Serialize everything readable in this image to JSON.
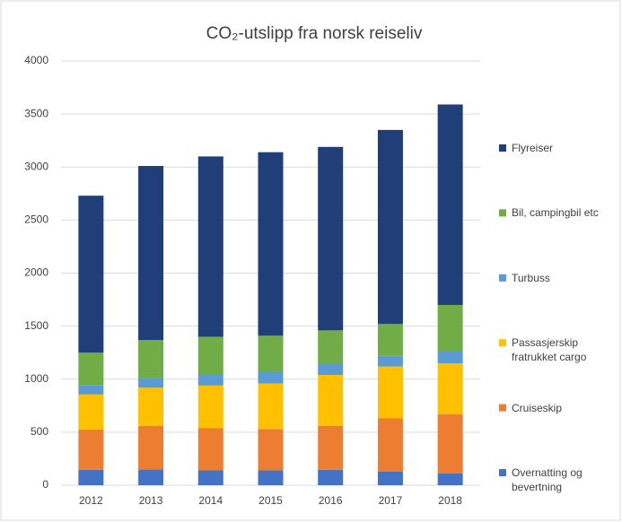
{
  "chart_data": {
    "type": "stacked_bar",
    "title": "CO₂-utslipp fra norsk reiseliv",
    "categories": [
      "2012",
      "2013",
      "2014",
      "2015",
      "2016",
      "2017",
      "2018"
    ],
    "series": [
      {
        "name": "Overnatting og bevertning",
        "color": "#4472c4",
        "values": [
          145,
          150,
          140,
          140,
          145,
          130,
          110
        ]
      },
      {
        "name": "Cruiseskip",
        "color": "#ed7d31",
        "values": [
          380,
          410,
          400,
          390,
          415,
          500,
          560
        ]
      },
      {
        "name": "Passasjerskip fratrukket cargo",
        "color": "#ffc000",
        "values": [
          330,
          360,
          400,
          430,
          480,
          490,
          480
        ]
      },
      {
        "name": "Turbuss",
        "color": "#5b9bd5",
        "values": [
          85,
          90,
          100,
          110,
          110,
          100,
          110
        ]
      },
      {
        "name": "Bil, campingbil etc",
        "color": "#70ad47",
        "values": [
          310,
          360,
          360,
          340,
          310,
          300,
          440
        ]
      },
      {
        "name": "Flyreiser",
        "color": "#203e78",
        "values": [
          1480,
          1640,
          1700,
          1730,
          1730,
          1830,
          1890
        ]
      }
    ],
    "ylim": [
      0,
      4000
    ],
    "yticks": [
      0,
      500,
      1000,
      1500,
      2000,
      2500,
      3000,
      3500,
      4000
    ],
    "grid": true,
    "legend": "right"
  }
}
